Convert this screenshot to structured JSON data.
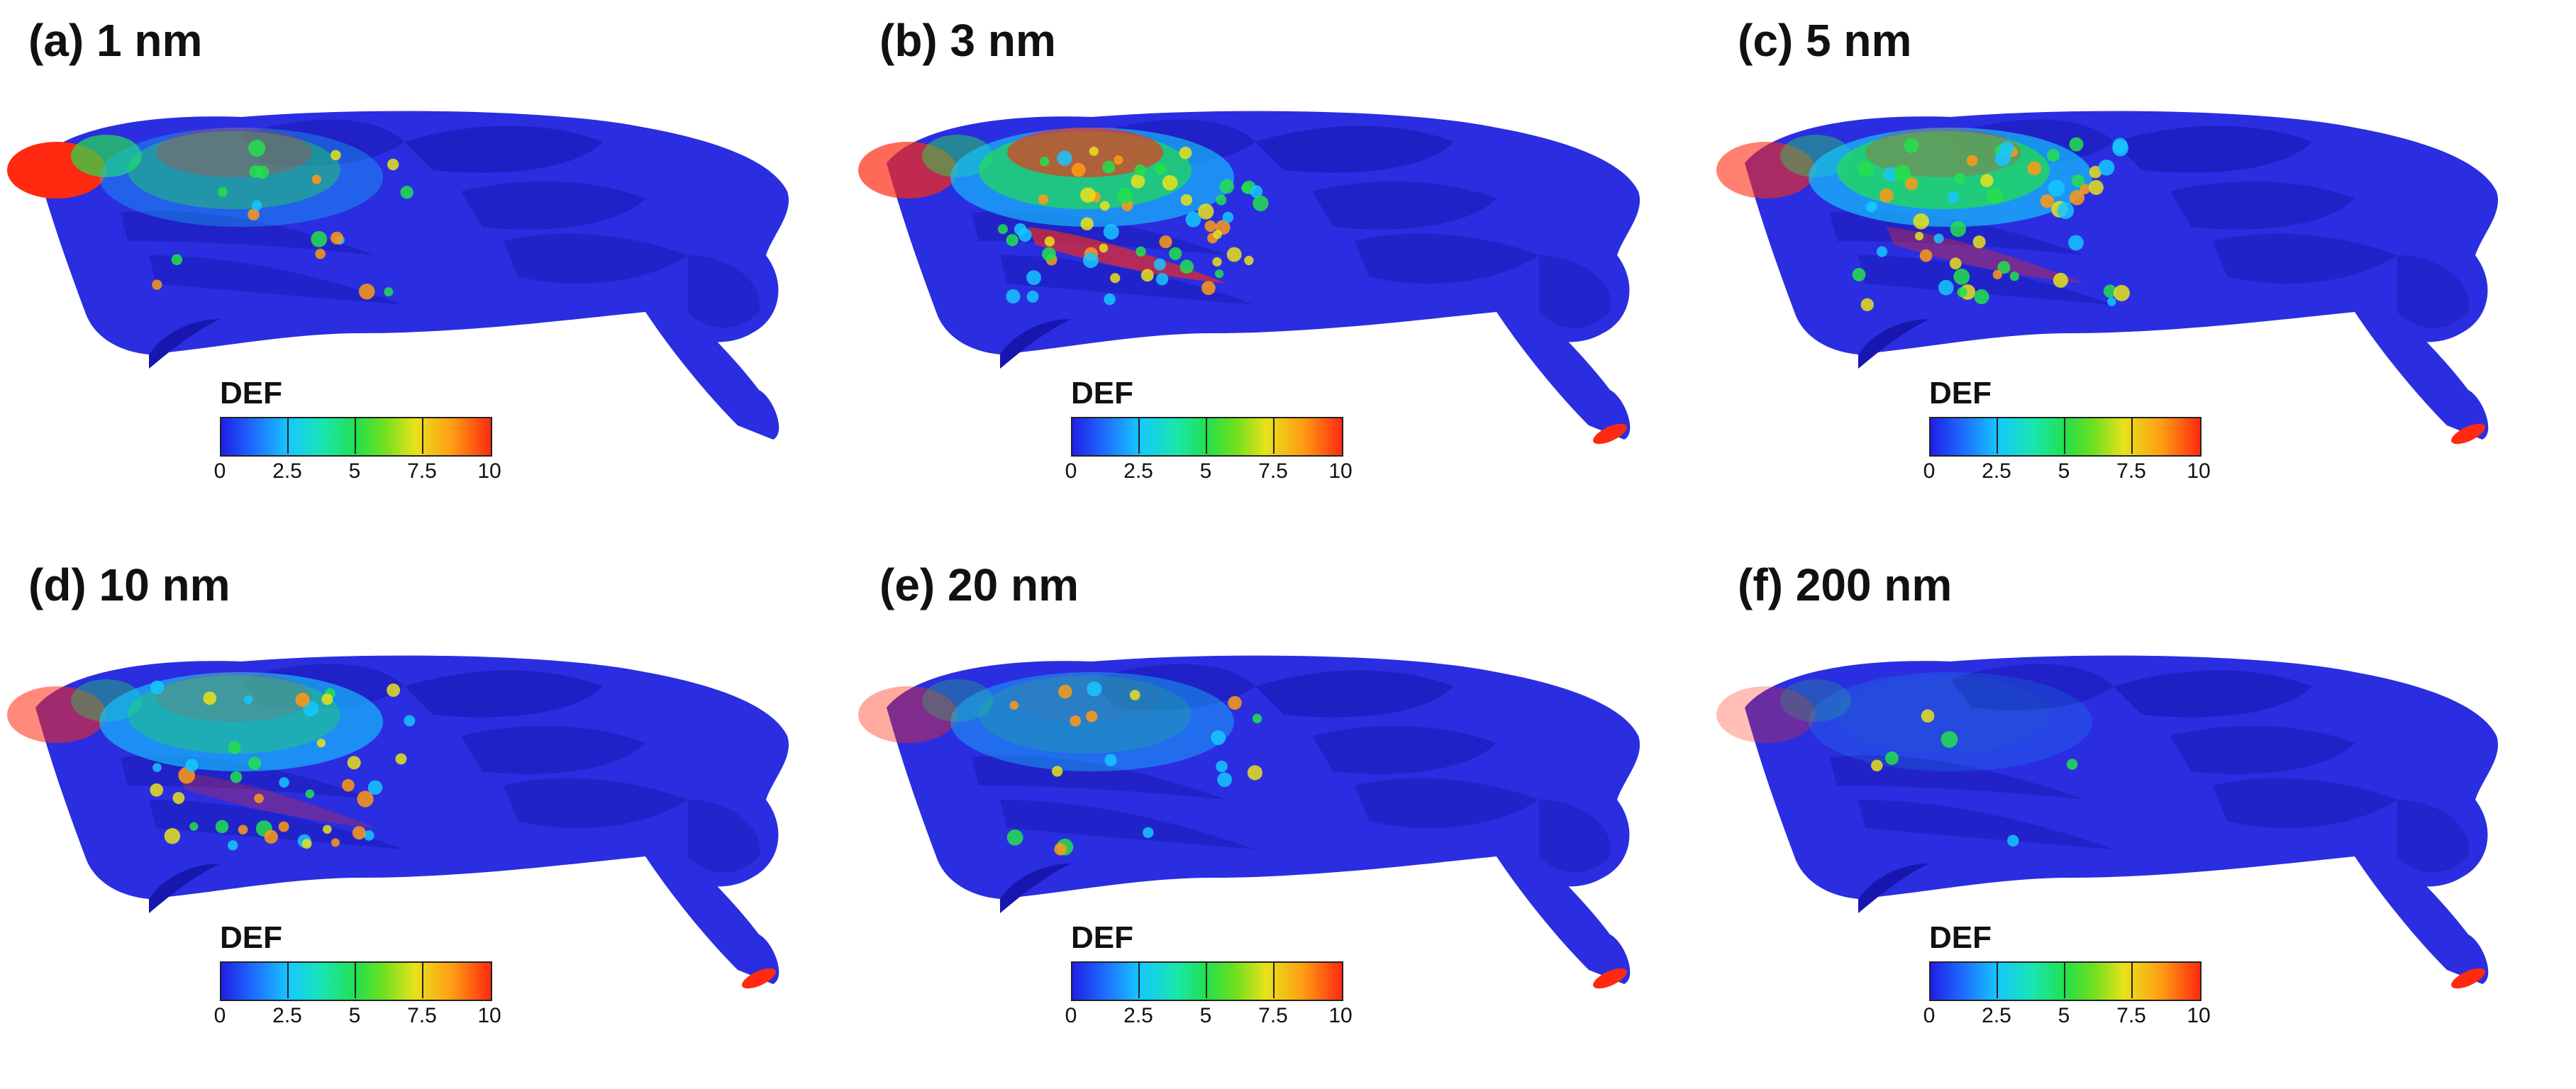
{
  "panels": [
    {
      "id": "a",
      "title": "(a) 1 nm",
      "colorbar_title": "DEF",
      "ticks": [
        "0",
        "2.5",
        "5",
        "7.5",
        "10"
      ]
    },
    {
      "id": "b",
      "title": "(b) 3 nm",
      "colorbar_title": "DEF",
      "ticks": [
        "0",
        "2.5",
        "5",
        "7.5",
        "10"
      ]
    },
    {
      "id": "c",
      "title": "(c) 5 nm",
      "colorbar_title": "DEF",
      "ticks": [
        "0",
        "2.5",
        "5",
        "7.5",
        "10"
      ]
    },
    {
      "id": "d",
      "title": "(d) 10 nm",
      "colorbar_title": "DEF",
      "ticks": [
        "0",
        "2.5",
        "5",
        "7.5",
        "10"
      ]
    },
    {
      "id": "e",
      "title": "(e) 20 nm",
      "colorbar_title": "DEF",
      "ticks": [
        "0",
        "2.5",
        "5",
        "7.5",
        "10"
      ]
    },
    {
      "id": "f",
      "title": "(f) 200 nm",
      "colorbar_title": "DEF",
      "ticks": [
        "0",
        "2.5",
        "5",
        "7.5",
        "10"
      ]
    }
  ],
  "colors": {
    "model_base": "#2a2ee0",
    "model_shade": "#1717b0",
    "colormap": [
      "#1f1fe6",
      "#16c7ff",
      "#23e04c",
      "#e9e21a",
      "#ff2a10"
    ]
  }
}
